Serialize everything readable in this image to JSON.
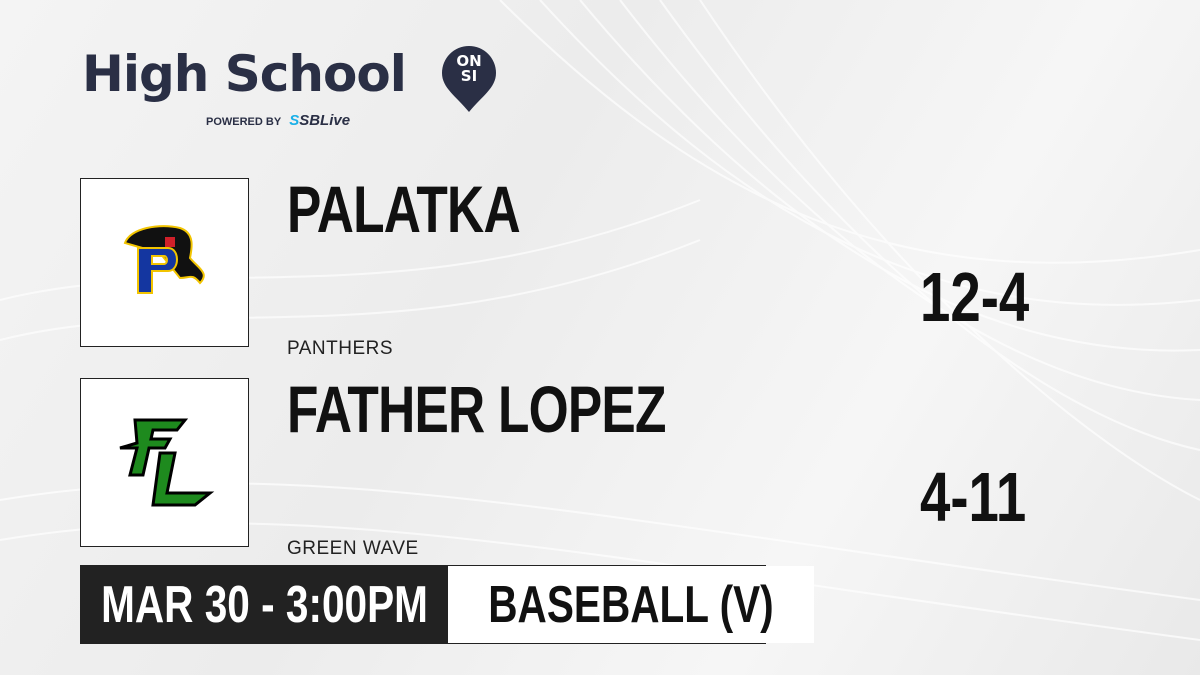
{
  "brand": {
    "title": "High School",
    "badge_top": "ON",
    "badge_bottom": "SI",
    "powered_by": "POWERED BY",
    "partner": "SBLive",
    "partner_mark": "S"
  },
  "teams": [
    {
      "name": "PALATKA",
      "mascot": "PANTHERS",
      "score": "12-4",
      "logo_letters": "P"
    },
    {
      "name": "FATHER LOPEZ",
      "mascot": "GREEN WAVE",
      "score": "4-11",
      "logo_letters": "FL"
    }
  ],
  "game": {
    "datetime": "MAR 30 - 3:00PM",
    "sport": "BASEBALL (V)"
  },
  "colors": {
    "brand_navy": "#2a2f45",
    "sblive_blue": "#1ab0e8",
    "palatka_blue": "#1436a0",
    "palatka_gold": "#f2c400",
    "lopez_green": "#1e8a1e",
    "bar_dark": "#222222"
  }
}
